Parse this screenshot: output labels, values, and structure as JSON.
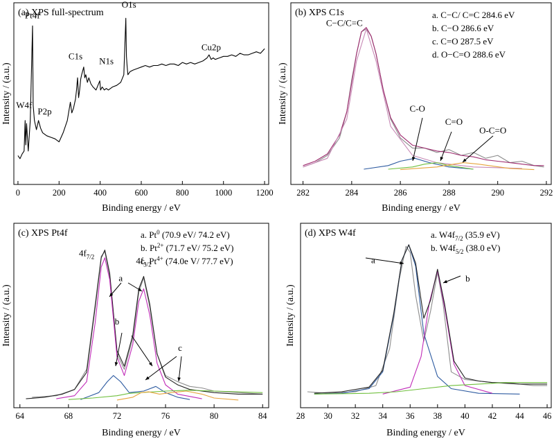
{
  "chart_data": [
    {
      "id": "a",
      "type": "line",
      "title": "(a) XPS full-spectrum",
      "xlabel": "Binding energy / eV",
      "ylabel": "Intensity / (a.u.)",
      "xlim": [
        -20,
        1220
      ],
      "ylim": [
        0,
        1
      ],
      "xticks": [
        0,
        200,
        400,
        600,
        800,
        1000,
        1200
      ],
      "grid": false,
      "series": [
        {
          "color": "#000000",
          "x": [
            0,
            10,
            20,
            30,
            35,
            38,
            42,
            50,
            60,
            68,
            71,
            74,
            80,
            90,
            100,
            110,
            120,
            140,
            160,
            180,
            200,
            220,
            240,
            255,
            262,
            270,
            280,
            285,
            290,
            295,
            300,
            305,
            310,
            320,
            325,
            330,
            338,
            345,
            355,
            365,
            380,
            398,
            402,
            410,
            420,
            430,
            440,
            460,
            480,
            500,
            515,
            525,
            528,
            531,
            535,
            545,
            560,
            580,
            600,
            620,
            640,
            660,
            680,
            700,
            720,
            740,
            760,
            780,
            800,
            820,
            840,
            860,
            880,
            900,
            920,
            930,
            940,
            950,
            960,
            980,
            1000,
            1020,
            1040,
            1060,
            1080,
            1100,
            1120,
            1140,
            1160,
            1180,
            1200
          ],
          "y": [
            0.07,
            0.05,
            0.08,
            0.1,
            0.3,
            0.14,
            0.28,
            0.1,
            0.3,
            0.75,
            0.92,
            0.4,
            0.3,
            0.24,
            0.3,
            0.25,
            0.22,
            0.2,
            0.19,
            0.18,
            0.16,
            0.22,
            0.3,
            0.42,
            0.35,
            0.38,
            0.44,
            0.5,
            0.58,
            0.45,
            0.5,
            0.57,
            0.6,
            0.65,
            0.58,
            0.6,
            0.55,
            0.58,
            0.54,
            0.52,
            0.5,
            0.56,
            0.5,
            0.52,
            0.5,
            0.51,
            0.5,
            0.52,
            0.53,
            0.55,
            0.6,
            0.97,
            0.72,
            0.66,
            0.6,
            0.62,
            0.63,
            0.64,
            0.65,
            0.66,
            0.65,
            0.66,
            0.66,
            0.67,
            0.66,
            0.67,
            0.67,
            0.66,
            0.68,
            0.67,
            0.68,
            0.67,
            0.68,
            0.69,
            0.71,
            0.73,
            0.7,
            0.71,
            0.7,
            0.71,
            0.72,
            0.72,
            0.73,
            0.72,
            0.74,
            0.73,
            0.73,
            0.74,
            0.75,
            0.74,
            0.77
          ]
        }
      ],
      "annotations": [
        {
          "text": "W4f",
          "x": 30,
          "y": 0.38
        },
        {
          "text": "Pt4f",
          "x": 70,
          "y": 0.97
        },
        {
          "text": "P2p",
          "x": 130,
          "y": 0.34
        },
        {
          "text": "C1s",
          "x": 280,
          "y": 0.7
        },
        {
          "text": "N1s",
          "x": 430,
          "y": 0.67
        },
        {
          "text": "O1s",
          "x": 540,
          "y": 1.04
        },
        {
          "text": "Cu2p",
          "x": 940,
          "y": 0.76
        }
      ],
      "legend": []
    },
    {
      "id": "b",
      "type": "line",
      "title": "(b) XPS C1s",
      "xlabel": "Binding energy / eV",
      "ylabel": "Intensity / (a.u.)",
      "xlim": [
        281.5,
        292.2
      ],
      "ylim": [
        0,
        1
      ],
      "xticks": [
        282,
        284,
        286,
        288,
        290,
        292
      ],
      "grid": false,
      "series": [
        {
          "color": "#8c8c8c",
          "x": [
            282,
            282.5,
            283,
            283.5,
            283.8,
            284,
            284.2,
            284.4,
            284.6,
            284.8,
            285,
            285.3,
            285.6,
            286,
            286.5,
            287,
            287.5,
            288,
            288.5,
            289,
            289.5,
            290,
            290.5,
            291,
            291.5,
            291.9
          ],
          "y": [
            0.02,
            0.05,
            0.1,
            0.22,
            0.4,
            0.62,
            0.8,
            0.95,
            0.97,
            0.92,
            0.8,
            0.55,
            0.35,
            0.22,
            0.15,
            0.15,
            0.12,
            0.14,
            0.1,
            0.12,
            0.08,
            0.1,
            0.05,
            0.06,
            0.03,
            0.02
          ]
        },
        {
          "color": "#9e2a6e",
          "x": [
            282,
            282.5,
            283,
            283.5,
            283.8,
            284,
            284.2,
            284.4,
            284.6,
            284.8,
            285,
            285.3,
            285.6,
            286,
            286.5,
            287,
            287.5,
            288,
            288.5,
            289,
            289.5,
            290,
            290.5,
            291,
            291.5,
            291.9
          ],
          "y": [
            0.03,
            0.06,
            0.11,
            0.24,
            0.4,
            0.6,
            0.8,
            0.95,
            0.98,
            0.92,
            0.8,
            0.55,
            0.36,
            0.24,
            0.17,
            0.15,
            0.13,
            0.12,
            0.1,
            0.09,
            0.07,
            0.06,
            0.05,
            0.04,
            0.03,
            0.03
          ]
        },
        {
          "color": "#c78ab6",
          "x": [
            282,
            283,
            283.8,
            284.2,
            284.6,
            285,
            285.6,
            286.5,
            287.5,
            289,
            291
          ],
          "y": [
            0.02,
            0.08,
            0.35,
            0.75,
            0.97,
            0.75,
            0.3,
            0.1,
            0.05,
            0.02,
            0.01
          ]
        },
        {
          "color": "#2c5aa0",
          "x": [
            284.5,
            285.5,
            286,
            286.6,
            287.2,
            288,
            289
          ],
          "y": [
            0.005,
            0.03,
            0.06,
            0.08,
            0.05,
            0.02,
            0.005
          ]
        },
        {
          "color": "#6fbf3c",
          "x": [
            285.5,
            286.5,
            287,
            287.5,
            288,
            289
          ],
          "y": [
            0.005,
            0.02,
            0.04,
            0.05,
            0.03,
            0.005
          ]
        },
        {
          "color": "#e6a43c",
          "x": [
            286,
            287.5,
            288.2,
            288.6,
            289.2,
            290.5,
            291.5
          ],
          "y": [
            0.002,
            0.02,
            0.04,
            0.05,
            0.04,
            0.01,
            0.002
          ]
        }
      ],
      "annotations": [
        {
          "text": "C−C/C=C",
          "x": 283.7,
          "y": 0.99
        },
        {
          "text": "C-O",
          "x": 286.7,
          "y": 0.4
        },
        {
          "text": "C=O",
          "x": 288.2,
          "y": 0.31
        },
        {
          "text": "O-C=O",
          "x": 289.8,
          "y": 0.25
        }
      ],
      "legend": [
        "a. C−C/ C=C 284.6 eV",
        "b. C−O 286.6 eV",
        "c. C=O  287.5 eV",
        "d. O−C=O 288.6 eV"
      ]
    },
    {
      "id": "c",
      "type": "line",
      "title": "(c) XPS Pt4f",
      "xlabel": "Binding energy / eV",
      "ylabel": "Intensity / (a.u.)",
      "xlim": [
        63.5,
        84.5
      ],
      "ylim": [
        0,
        1
      ],
      "xticks": [
        64,
        68,
        72,
        76,
        80,
        84
      ],
      "grid": false,
      "series": [
        {
          "color": "#8c8c8c",
          "x": [
            65,
            67,
            68.5,
            69.5,
            70.2,
            70.7,
            71,
            71.4,
            72,
            72.6,
            73.3,
            73.8,
            74.2,
            74.7,
            75.3,
            76,
            77,
            78,
            79,
            80,
            82,
            84
          ],
          "y": [
            0.02,
            0.03,
            0.07,
            0.2,
            0.62,
            0.93,
            0.96,
            0.8,
            0.3,
            0.2,
            0.4,
            0.7,
            0.79,
            0.6,
            0.3,
            0.16,
            0.12,
            0.09,
            0.08,
            0.06,
            0.05,
            0.04
          ]
        },
        {
          "color": "#222222",
          "x": [
            64.5,
            66,
            67.5,
            68.5,
            69.5,
            70.2,
            70.7,
            71,
            71.4,
            72,
            72.6,
            73.3,
            73.8,
            74.2,
            74.7,
            75.3,
            76,
            77,
            78,
            80,
            82,
            84
          ],
          "y": [
            0.01,
            0.02,
            0.04,
            0.07,
            0.18,
            0.6,
            0.92,
            0.97,
            0.82,
            0.32,
            0.22,
            0.42,
            0.72,
            0.8,
            0.62,
            0.3,
            0.15,
            0.1,
            0.07,
            0.05,
            0.04,
            0.04
          ]
        },
        {
          "color": "#c02bb8",
          "x": [
            67,
            68.5,
            69.5,
            70.2,
            70.7,
            71,
            71.4,
            72,
            72.6,
            73.3,
            73.8,
            74.2,
            74.7,
            75.3,
            76,
            77,
            79
          ],
          "y": [
            0.01,
            0.03,
            0.12,
            0.5,
            0.86,
            0.92,
            0.78,
            0.28,
            0.16,
            0.36,
            0.64,
            0.72,
            0.55,
            0.24,
            0.1,
            0.04,
            0.01
          ]
        },
        {
          "color": "#2c5aa0",
          "x": [
            69,
            70.5,
            71.2,
            71.7,
            72.3,
            73,
            74.2,
            75.2,
            76,
            77,
            78
          ],
          "y": [
            0.005,
            0.05,
            0.12,
            0.16,
            0.12,
            0.05,
            0.06,
            0.09,
            0.05,
            0.02,
            0.005
          ]
        },
        {
          "color": "#6fbf3c",
          "x": [
            68,
            70,
            72,
            73,
            74,
            76,
            78,
            80,
            84
          ],
          "y": [
            0.005,
            0.015,
            0.03,
            0.045,
            0.05,
            0.06,
            0.065,
            0.06,
            0.05
          ]
        },
        {
          "color": "#e6a43c",
          "x": [
            72,
            73.3,
            74,
            74.6,
            75.5,
            76.5,
            77.7,
            79,
            80,
            82
          ],
          "y": [
            0.002,
            0.02,
            0.05,
            0.055,
            0.04,
            0.05,
            0.06,
            0.04,
            0.015,
            0.002
          ]
        }
      ],
      "annotations": [
        {
          "text": "4f7/2",
          "x": 69.5,
          "y": 0.93
        },
        {
          "text": "4f5/2",
          "x": 74.2,
          "y": 0.88
        },
        {
          "text": "a",
          "x": 72.3,
          "y": 0.77
        },
        {
          "text": "b",
          "x": 72.0,
          "y": 0.49
        },
        {
          "text": "c",
          "x": 77.2,
          "y": 0.32
        }
      ],
      "legend": [
        "a. Pt0 (70.9 eV/ 74.2 eV)",
        "b. Pt2+ (71.7 eV/ 75.2 eV)",
        "c. Pt4+ (74.0e V/ 77.7 eV)"
      ]
    },
    {
      "id": "d",
      "type": "line",
      "title": "(d) XPS W4f",
      "xlabel": "Binding energy / eV",
      "ylabel": "Intensity / (a.u.)",
      "xlim": [
        28,
        46.3
      ],
      "ylim": [
        0,
        1
      ],
      "xticks": [
        28,
        30,
        32,
        34,
        36,
        38,
        40,
        42,
        44,
        46
      ],
      "grid": false,
      "series": [
        {
          "color": "#8c8c8c",
          "x": [
            28.5,
            30,
            32,
            33.5,
            34.5,
            35.2,
            35.7,
            36,
            36.4,
            37,
            37.5,
            38,
            38.4,
            39,
            40,
            41,
            42,
            43,
            44,
            45,
            46
          ],
          "y": [
            0.02,
            0.01,
            0.02,
            0.06,
            0.3,
            0.75,
            0.97,
            0.93,
            0.65,
            0.35,
            0.55,
            0.8,
            0.6,
            0.15,
            0.1,
            0.09,
            0.08,
            0.08,
            0.07,
            0.06,
            0.06
          ]
        },
        {
          "color": "#2c5aa0",
          "x": [
            29,
            31,
            33,
            34,
            34.8,
            35.4,
            35.9,
            36.4,
            37,
            38,
            39,
            41,
            44
          ],
          "y": [
            0.005,
            0.01,
            0.04,
            0.15,
            0.52,
            0.88,
            0.98,
            0.84,
            0.4,
            0.12,
            0.04,
            0.01,
            0.005
          ]
        },
        {
          "color": "#c02bb8",
          "x": [
            34,
            36,
            36.8,
            37.4,
            38,
            38.5,
            39.2,
            40,
            42
          ],
          "y": [
            0.005,
            0.05,
            0.25,
            0.6,
            0.81,
            0.58,
            0.2,
            0.06,
            0.01
          ]
        },
        {
          "color": "#222222",
          "x": [
            29,
            31,
            33,
            34,
            34.8,
            35.4,
            35.9,
            36.4,
            37,
            37.5,
            38,
            38.5,
            39.2,
            40,
            41,
            42,
            44,
            46
          ],
          "y": [
            0.01,
            0.02,
            0.05,
            0.16,
            0.53,
            0.88,
            0.98,
            0.86,
            0.5,
            0.62,
            0.82,
            0.6,
            0.22,
            0.11,
            0.09,
            0.08,
            0.07,
            0.07
          ]
        },
        {
          "color": "#6fbf3c",
          "x": [
            29,
            33,
            35,
            37,
            39,
            41,
            43,
            46
          ],
          "y": [
            0.005,
            0.01,
            0.02,
            0.04,
            0.06,
            0.07,
            0.08,
            0.08
          ]
        }
      ],
      "annotations": [
        {
          "text": "a",
          "x": 33.3,
          "y": 0.86
        },
        {
          "text": "b",
          "x": 40.2,
          "y": 0.74
        }
      ],
      "legend": [
        "a. W4f7/2 (35.9 eV)",
        "b. W4f5/2 (38.0 eV)"
      ]
    }
  ]
}
